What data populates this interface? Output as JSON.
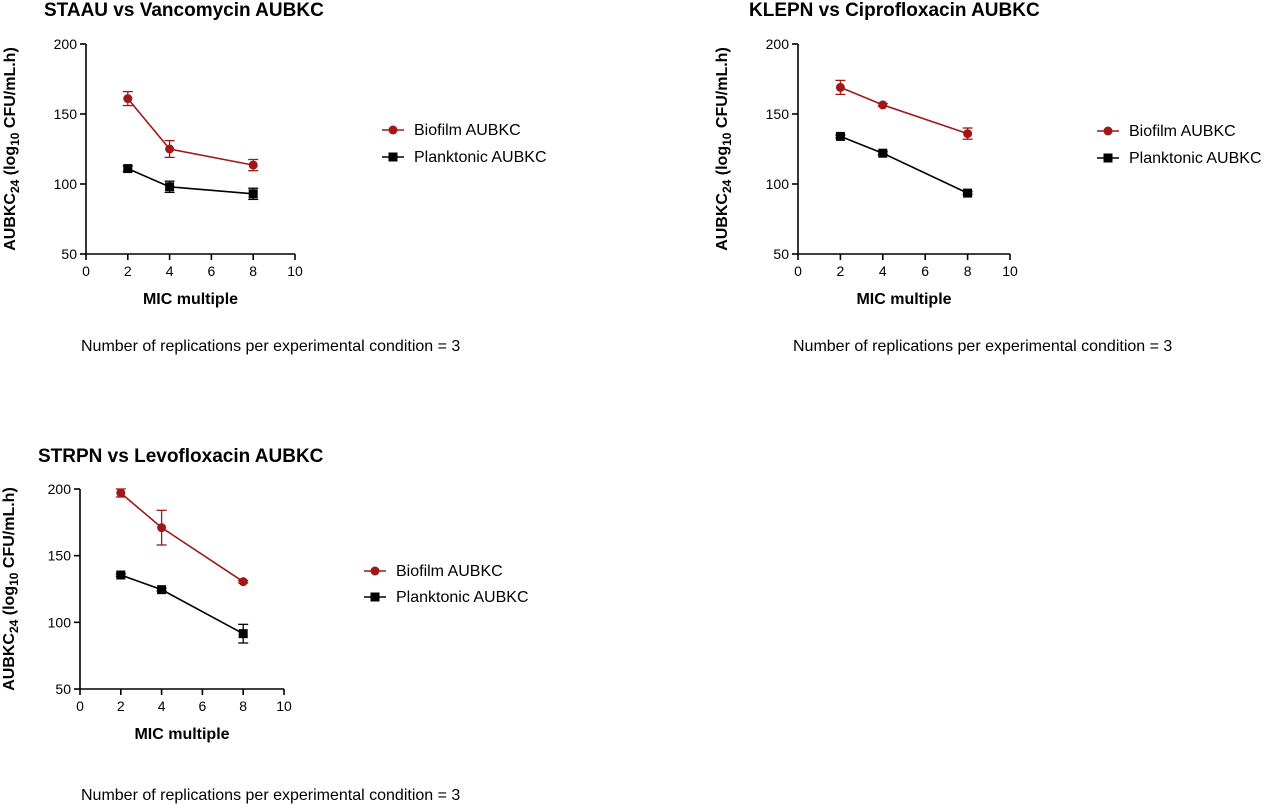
{
  "chart_data": [
    {
      "type": "line",
      "title": "STAAU vs Vancomycin AUBKC",
      "xlabel": "MIC multiple",
      "ylabel_main": "AUBKC",
      "ylabel_sub": "24",
      "ylabel_rest_pre": " (log",
      "ylabel_rest_sub": "10",
      "ylabel_rest_post": " CFU/mL.h)",
      "xlim": [
        0,
        10
      ],
      "ylim": [
        50,
        200
      ],
      "xticks": [
        "0",
        "2",
        "4",
        "6",
        "8",
        "10"
      ],
      "yticks": [
        "50",
        "100",
        "150",
        "200"
      ],
      "grid": false,
      "legend_position": "right",
      "note": "Number of replications per experimental condition = 3",
      "series": [
        {
          "name": "Biofilm AUBKC",
          "color": "#a01818",
          "marker": "circle",
          "x": [
            2,
            4,
            8
          ],
          "y": [
            161,
            125,
            113.5
          ],
          "err": [
            5,
            6,
            4
          ]
        },
        {
          "name": "Planktonic AUBKC",
          "color": "#000000",
          "marker": "square",
          "x": [
            2,
            4,
            8
          ],
          "y": [
            111,
            98,
            93
          ],
          "err": [
            2,
            4,
            4
          ]
        }
      ]
    },
    {
      "type": "line",
      "title": "KLEPN vs Ciprofloxacin AUBKC",
      "xlabel": "MIC multiple",
      "ylabel_main": "AUBKC",
      "ylabel_sub": "24",
      "ylabel_rest_pre": " (log",
      "ylabel_rest_sub": "10",
      "ylabel_rest_post": " CFU/mL.h)",
      "xlim": [
        0,
        10
      ],
      "ylim": [
        50,
        200
      ],
      "xticks": [
        "0",
        "2",
        "4",
        "6",
        "8",
        "10"
      ],
      "yticks": [
        "50",
        "100",
        "150",
        "200"
      ],
      "grid": false,
      "legend_position": "right",
      "note": "Number of replications per experimental condition = 3",
      "series": [
        {
          "name": "Biofilm AUBKC",
          "color": "#a01818",
          "marker": "circle",
          "x": [
            2,
            4,
            8
          ],
          "y": [
            169,
            156.5,
            136
          ],
          "err": [
            5,
            1,
            4
          ]
        },
        {
          "name": "Planktonic AUBKC",
          "color": "#000000",
          "marker": "square",
          "x": [
            2,
            4,
            8
          ],
          "y": [
            134,
            122,
            93.5
          ],
          "err": [
            1,
            1,
            1
          ]
        }
      ]
    },
    {
      "type": "line",
      "title": "STRPN vs Levofloxacin AUBKC",
      "xlabel": "MIC multiple",
      "ylabel_main": "AUBKC",
      "ylabel_sub": "24",
      "ylabel_rest_pre": " (log",
      "ylabel_rest_sub": "10",
      "ylabel_rest_post": " CFU/mL.h)",
      "xlim": [
        0,
        10
      ],
      "ylim": [
        50,
        200
      ],
      "xticks": [
        "0",
        "2",
        "4",
        "6",
        "8",
        "10"
      ],
      "yticks": [
        "50",
        "100",
        "150",
        "200"
      ],
      "grid": false,
      "legend_position": "right",
      "note": "Number of replications per experimental condition = 3",
      "series": [
        {
          "name": "Biofilm AUBKC",
          "color": "#a01818",
          "marker": "circle",
          "x": [
            2,
            4,
            8
          ],
          "y": [
            197,
            171,
            130.5
          ],
          "err": [
            3,
            13,
            1
          ]
        },
        {
          "name": "Planktonic AUBKC",
          "color": "#000000",
          "marker": "square",
          "x": [
            2,
            4,
            8
          ],
          "y": [
            135.5,
            124.5,
            91.5
          ],
          "err": [
            1,
            1,
            7
          ]
        }
      ]
    }
  ]
}
